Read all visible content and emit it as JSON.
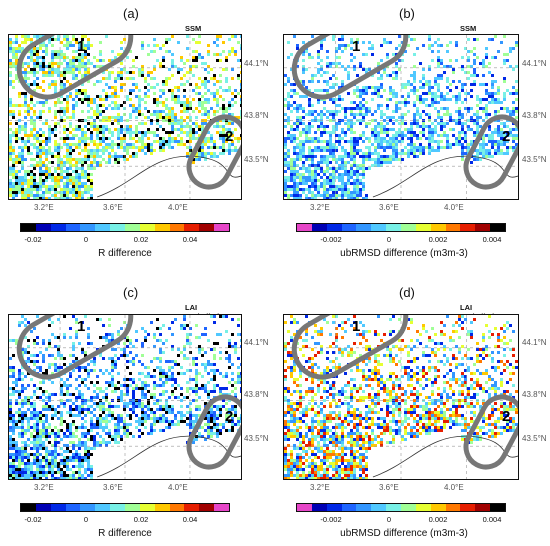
{
  "panels": [
    {
      "label": "(a)",
      "title": "SSM assimilation",
      "lat_ticks": [
        "44.1°N",
        "43.8°N",
        "43.5°N"
      ],
      "lon_ticks": [
        "3.2°E",
        "3.6°E",
        "4.0°E"
      ],
      "regions": [
        "1",
        "2"
      ],
      "colorbar": {
        "title": "R difference",
        "ticks": [
          "-0.02",
          "0",
          "0.02",
          "0.04"
        ],
        "colors": [
          "#000000",
          "#0000b4",
          "#0028e6",
          "#1e64ff",
          "#3296ff",
          "#50c8ff",
          "#78f0e6",
          "#a0ff96",
          "#e6ff32",
          "#ffc800",
          "#ff7800",
          "#e61e00",
          "#a00000",
          "#e646c8"
        ]
      }
    },
    {
      "label": "(b)",
      "title": "SSM assimilation",
      "lat_ticks": [
        "44.1°N",
        "43.8°N",
        "43.5°N"
      ],
      "lon_ticks": [
        "3.2°E",
        "3.6°E",
        "4.0°E"
      ],
      "regions": [
        "1",
        "2"
      ],
      "colorbar": {
        "title": "ubRMSD difference (m3m-3)",
        "ticks": [
          "-0.002",
          "0",
          "0.002",
          "0.004"
        ],
        "colors": [
          "#e646c8",
          "#0000b4",
          "#0028e6",
          "#1e64ff",
          "#3296ff",
          "#50c8ff",
          "#78f0e6",
          "#a0ff96",
          "#e6ff32",
          "#ffc800",
          "#ff7800",
          "#e61e00",
          "#a00000",
          "#000000"
        ]
      }
    },
    {
      "label": "(c)",
      "title": "LAI assimilation",
      "lat_ticks": [
        "44.1°N",
        "43.8°N",
        "43.5°N"
      ],
      "lon_ticks": [
        "3.2°E",
        "3.6°E",
        "4.0°E"
      ],
      "regions": [
        "1",
        "2"
      ],
      "colorbar": {
        "title": "R difference",
        "ticks": [
          "-0.02",
          "0",
          "0.02",
          "0.04"
        ],
        "colors": [
          "#000000",
          "#0000b4",
          "#0028e6",
          "#1e64ff",
          "#3296ff",
          "#50c8ff",
          "#78f0e6",
          "#a0ff96",
          "#e6ff32",
          "#ffc800",
          "#ff7800",
          "#e61e00",
          "#a00000",
          "#e646c8"
        ]
      }
    },
    {
      "label": "(d)",
      "title": "LAI assimilation",
      "lat_ticks": [
        "44.1°N",
        "43.8°N",
        "43.5°N"
      ],
      "lon_ticks": [
        "3.2°E",
        "3.6°E",
        "4.0°E"
      ],
      "regions": [
        "1",
        "2"
      ],
      "colorbar": {
        "title": "ubRMSD difference (m3m-3)",
        "ticks": [
          "-0.002",
          "0",
          "0.002",
          "0.004"
        ],
        "colors": [
          "#e646c8",
          "#0000b4",
          "#0028e6",
          "#1e64ff",
          "#3296ff",
          "#50c8ff",
          "#78f0e6",
          "#a0ff96",
          "#e6ff32",
          "#ffc800",
          "#ff7800",
          "#e61e00",
          "#a00000",
          "#000000"
        ]
      }
    }
  ]
}
